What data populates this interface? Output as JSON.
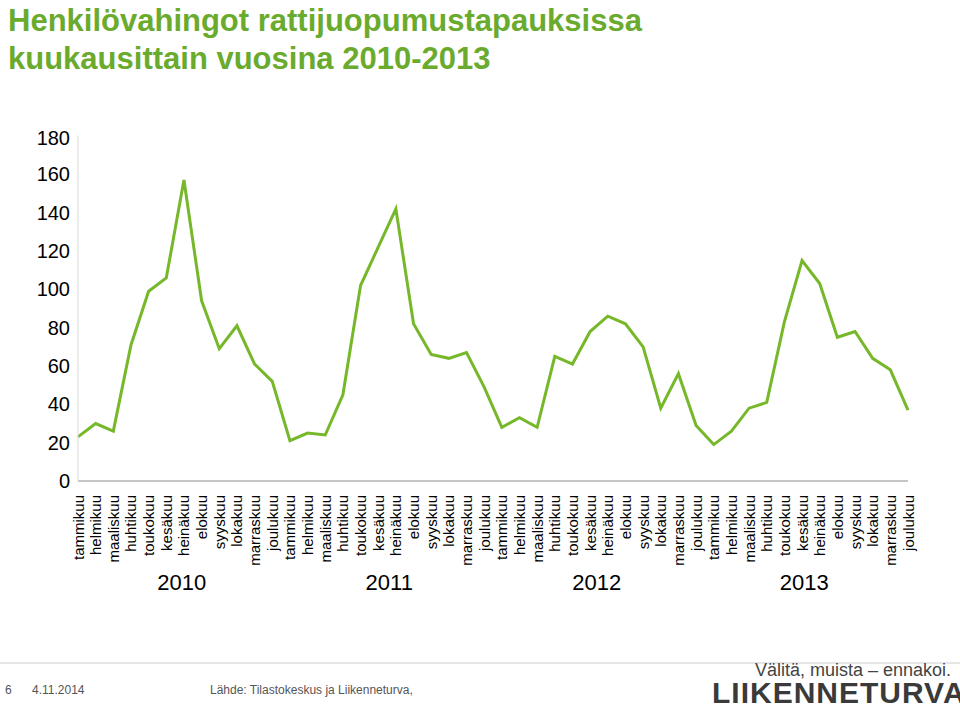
{
  "chart_data": {
    "type": "line",
    "title": "Henkilövahingot rattijuopumustapauksissa kuukausittain vuosina 2010-2013",
    "categories": [
      "tammikuu",
      "helmikuu",
      "maaliskuu",
      "huhtikuu",
      "toukokuu",
      "kesäkuu",
      "heinäkuu",
      "elokuu",
      "syyskuu",
      "lokakuu",
      "marraskuu",
      "joulukuu",
      "tammikuu",
      "helmikuu",
      "maaliskuu",
      "huhtikuu",
      "toukokuu",
      "kesäkuu",
      "heinäkuu",
      "elokuu",
      "syyskuu",
      "lokakuu",
      "marraskuu",
      "joulukuu",
      "tammikuu",
      "helmikuu",
      "maaliskuu",
      "huhtikuu",
      "toukokuu",
      "kesäkuu",
      "heinäkuu",
      "elokuu",
      "syyskuu",
      "lokakuu",
      "marraskuu",
      "joulukuu",
      "tammikuu",
      "helmikuu",
      "maaliskuu",
      "huhtikuu",
      "toukokuu",
      "kesäkuu",
      "heinäkuu",
      "elokuu",
      "syyskuu",
      "lokakuu",
      "marraskuu",
      "joulukuu"
    ],
    "values": [
      23,
      30,
      26,
      71,
      99,
      106,
      157,
      94,
      69,
      81,
      61,
      52,
      21,
      25,
      24,
      45,
      102,
      122,
      142,
      82,
      66,
      64,
      67,
      49,
      28,
      33,
      28,
      65,
      61,
      78,
      86,
      82,
      70,
      38,
      56,
      29,
      19,
      26,
      38,
      41,
      83,
      115,
      103,
      75,
      78,
      64,
      58,
      37
    ],
    "color": "#76b82a",
    "ylim": [
      0,
      180
    ],
    "yticks": [
      0,
      20,
      40,
      60,
      80,
      100,
      120,
      140,
      160,
      180
    ],
    "grid": false,
    "year_labels": [
      "2010",
      "2011",
      "2012",
      "2013"
    ]
  },
  "footer": {
    "page": "6",
    "date": "4.11.2014",
    "source": "Lähde: Tilastokeskus ja Liikenneturva,",
    "slogan": "Välitä, muista – ennakoi.",
    "logo": "LIIKENNETURVA"
  }
}
